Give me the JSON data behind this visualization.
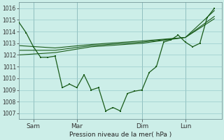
{
  "bg_color": "#cceee8",
  "grid_color": "#99cccc",
  "line_color": "#1a5c1a",
  "ylabel": "Pression niveau de la mer( hPa )",
  "ylim": [
    1006.5,
    1016.5
  ],
  "yticks": [
    1007,
    1008,
    1009,
    1010,
    1011,
    1012,
    1013,
    1014,
    1015,
    1016
  ],
  "xlim": [
    0,
    28
  ],
  "xtick_positions": [
    2,
    8,
    17,
    23
  ],
  "xtick_labels": [
    "Sam",
    "Mar",
    "Dim",
    "Lun"
  ],
  "vline_positions": [
    2,
    8,
    17,
    23
  ],
  "series_jagged": {
    "x": [
      0,
      1,
      2,
      3,
      4,
      5,
      6,
      7,
      8,
      9,
      10,
      11,
      12,
      13,
      14,
      15,
      16,
      17,
      18,
      19,
      20,
      21,
      22,
      23,
      24,
      25,
      26,
      27
    ],
    "y": [
      1014.8,
      1013.9,
      1012.7,
      1011.8,
      1011.8,
      1011.9,
      1009.2,
      1009.5,
      1009.2,
      1010.3,
      1009.0,
      1009.2,
      1007.2,
      1007.5,
      1007.2,
      1008.7,
      1008.9,
      1009.0,
      1010.5,
      1011.0,
      1013.1,
      1013.3,
      1013.7,
      1013.1,
      1012.7,
      1013.0,
      1015.2,
      1016.0
    ]
  },
  "series_forecast1": {
    "x": [
      0,
      5,
      10,
      17,
      23,
      27
    ],
    "y": [
      1012.8,
      1012.6,
      1012.9,
      1013.2,
      1013.5,
      1015.1
    ]
  },
  "series_forecast2": {
    "x": [
      0,
      5,
      10,
      17,
      23,
      27
    ],
    "y": [
      1012.4,
      1012.4,
      1012.8,
      1013.1,
      1013.5,
      1015.3
    ]
  },
  "series_forecast3": {
    "x": [
      0,
      5,
      10,
      17,
      23,
      27
    ],
    "y": [
      1012.0,
      1012.2,
      1012.7,
      1013.0,
      1013.5,
      1015.8
    ]
  }
}
